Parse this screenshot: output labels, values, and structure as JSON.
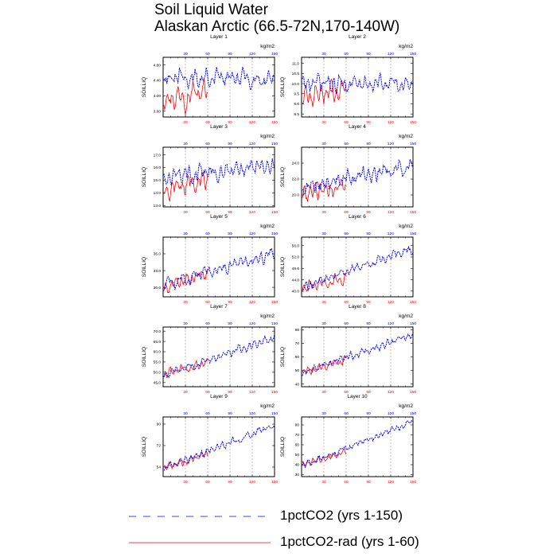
{
  "title": {
    "line1": "Soil Liquid Water",
    "line2": "Alaskan Arctic (66.5-72N,170-140W)"
  },
  "colors": {
    "series_long": "#0000ff",
    "series_short": "#ff0000",
    "axis": "#000000",
    "gridline": "#9a9a9a",
    "top_ticks": "#0000ff",
    "bottom_ticks": "#ff0000"
  },
  "legend": {
    "long_label": "1pctCO2 (yrs 1-150)",
    "short_label": "1pctCO2-rad (yrs 1-60)"
  },
  "chart_data": [
    {
      "type": "line",
      "title": "Layer 1",
      "ylabel": "SOILLIQ",
      "units": "kg/m2",
      "yticks": [
        3.6,
        4.0,
        4.4,
        4.8
      ],
      "ytick_labels": [
        "3.60",
        "4.00",
        "4.40",
        "4.80"
      ],
      "ylim": [
        3.45,
        5.0
      ],
      "xlim": [
        0,
        150
      ],
      "xticks": [
        30,
        60,
        90,
        120,
        150
      ],
      "grid": "vertical dashed",
      "series": [
        {
          "name": "1pctCO2 (yrs 1-150)",
          "start": 4.45,
          "trend": 0.0,
          "amp": 0.2,
          "noise": 0.11,
          "x_range": [
            1,
            150
          ]
        },
        {
          "name": "1pctCO2-rad (yrs 1-60)",
          "start": 3.95,
          "trend": 0.0028,
          "amp": 0.28,
          "noise": 0.13,
          "x_range": [
            1,
            60
          ]
        }
      ]
    },
    {
      "type": "line",
      "title": "Layer 2",
      "ylabel": "SOILLIQ",
      "units": "kg/m2",
      "yticks": [
        8.5,
        9.0,
        9.5,
        10.0,
        10.5,
        11.0
      ],
      "ytick_labels": [
        "8.5",
        "9.0",
        "9.5",
        "10.0",
        "10.5",
        "11.0"
      ],
      "ylim": [
        8.35,
        11.3
      ],
      "xlim": [
        0,
        150
      ],
      "xticks": [
        30,
        60,
        90,
        120,
        150
      ],
      "grid": "vertical dashed",
      "series": [
        {
          "name": "1pctCO2 (yrs 1-150)",
          "start": 10.0,
          "trend": 0.0,
          "amp": 0.35,
          "noise": 0.18,
          "x_range": [
            1,
            150
          ]
        },
        {
          "name": "1pctCO2-rad (yrs 1-60)",
          "start": 9.3,
          "trend": 0.008,
          "amp": 0.5,
          "noise": 0.2,
          "x_range": [
            1,
            60
          ]
        }
      ]
    },
    {
      "type": "line",
      "title": "Layer 3",
      "ylabel": "SOILLIQ",
      "units": "kg/m2",
      "yticks": [
        13.0,
        14.0,
        15.0,
        16.0,
        17.0
      ],
      "ytick_labels": [
        "13.0",
        "14.0",
        "15.0",
        "16.0",
        "17.0"
      ],
      "ylim": [
        12.9,
        17.6
      ],
      "xlim": [
        0,
        150
      ],
      "xticks": [
        30,
        60,
        90,
        120,
        150
      ],
      "grid": "vertical dashed",
      "series": [
        {
          "name": "1pctCO2 (yrs 1-150)",
          "start": 15.2,
          "trend": 0.007,
          "amp": 0.55,
          "noise": 0.3,
          "x_range": [
            1,
            150
          ]
        },
        {
          "name": "1pctCO2-rad (yrs 1-60)",
          "start": 14.2,
          "trend": 0.014,
          "amp": 0.7,
          "noise": 0.32,
          "x_range": [
            1,
            60
          ]
        }
      ]
    },
    {
      "type": "line",
      "title": "Layer 4",
      "ylabel": "SOILLIQ",
      "units": "kg/m2",
      "yticks": [
        20.0,
        22.0,
        24.0
      ],
      "ytick_labels": [
        "20.0",
        "22.0",
        "24.0"
      ],
      "ylim": [
        18.5,
        26.0
      ],
      "xlim": [
        0,
        150
      ],
      "xticks": [
        30,
        60,
        90,
        120,
        150
      ],
      "grid": "vertical dashed",
      "series": [
        {
          "name": "1pctCO2 (yrs 1-150)",
          "start": 20.8,
          "trend": 0.02,
          "amp": 0.9,
          "noise": 0.5,
          "x_range": [
            1,
            150
          ]
        },
        {
          "name": "1pctCO2-rad (yrs 1-60)",
          "start": 20.1,
          "trend": 0.02,
          "amp": 1.0,
          "noise": 0.5,
          "x_range": [
            1,
            60
          ]
        }
      ]
    },
    {
      "type": "line",
      "title": "Layer 5",
      "ylabel": "SOILLIQ",
      "units": "kg/m2",
      "yticks": [
        30.0,
        33.0,
        36.0
      ],
      "ytick_labels": [
        "30.0",
        "33.0",
        "36.0"
      ],
      "ylim": [
        28.3,
        39.0
      ],
      "xlim": [
        0,
        150
      ],
      "xticks": [
        30,
        60,
        90,
        120,
        150
      ],
      "grid": "vertical dashed",
      "series": [
        {
          "name": "1pctCO2 (yrs 1-150)",
          "start": 30.5,
          "trend": 0.038,
          "amp": 0.9,
          "noise": 0.5,
          "x_range": [
            1,
            150
          ]
        },
        {
          "name": "1pctCO2-rad (yrs 1-60)",
          "start": 30.0,
          "trend": 0.045,
          "amp": 1.1,
          "noise": 0.55,
          "x_range": [
            1,
            60
          ]
        }
      ]
    },
    {
      "type": "line",
      "title": "Layer 6",
      "ylabel": "SOILLIQ",
      "units": "kg/m2",
      "yticks": [
        40.0,
        44.0,
        48.0,
        52.0,
        56.0
      ],
      "ytick_labels": [
        "40.0",
        "44.0",
        "48.0",
        "52.0",
        "56.0"
      ],
      "ylim": [
        38.0,
        59.0
      ],
      "xlim": [
        0,
        150
      ],
      "xticks": [
        30,
        60,
        90,
        120,
        150
      ],
      "grid": "vertical dashed",
      "series": [
        {
          "name": "1pctCO2 (yrs 1-150)",
          "start": 41.5,
          "trend": 0.09,
          "amp": 1.5,
          "noise": 0.8,
          "x_range": [
            1,
            150
          ]
        },
        {
          "name": "1pctCO2-rad (yrs 1-60)",
          "start": 41.0,
          "trend": 0.06,
          "amp": 1.8,
          "noise": 0.8,
          "x_range": [
            1,
            60
          ]
        }
      ]
    },
    {
      "type": "line",
      "title": "Layer 7",
      "ylabel": "SOILLIQ",
      "units": "kg/m2",
      "yticks": [
        45.0,
        50.0,
        55.0,
        60.0,
        65.0,
        70.0
      ],
      "ytick_labels": [
        "45.0",
        "50.0",
        "55.0",
        "60.0",
        "65.0",
        "70.0"
      ],
      "ylim": [
        43.0,
        72.0
      ],
      "xlim": [
        0,
        150
      ],
      "xticks": [
        30,
        60,
        90,
        120,
        150
      ],
      "grid": "vertical dashed",
      "series": [
        {
          "name": "1pctCO2 (yrs 1-150)",
          "start": 48.5,
          "trend": 0.125,
          "amp": 1.8,
          "noise": 1.0,
          "x_range": [
            1,
            150
          ]
        },
        {
          "name": "1pctCO2-rad (yrs 1-60)",
          "start": 49.0,
          "trend": 0.1,
          "amp": 2.2,
          "noise": 1.0,
          "x_range": [
            1,
            60
          ]
        }
      ]
    },
    {
      "type": "line",
      "title": "Layer 8",
      "ylabel": "SOILLIQ",
      "units": "kg/m2",
      "yticks": [
        40,
        50,
        60,
        70,
        80
      ],
      "ytick_labels": [
        "40",
        "50",
        "60",
        "70",
        "80"
      ],
      "ylim": [
        38,
        82
      ],
      "xlim": [
        0,
        150
      ],
      "xticks": [
        30,
        60,
        90,
        120,
        150
      ],
      "grid": "vertical dashed",
      "series": [
        {
          "name": "1pctCO2 (yrs 1-150)",
          "start": 48.0,
          "trend": 0.19,
          "amp": 2.6,
          "noise": 1.5,
          "x_range": [
            1,
            150
          ]
        },
        {
          "name": "1pctCO2-rad (yrs 1-60)",
          "start": 49.0,
          "trend": 0.14,
          "amp": 3.0,
          "noise": 1.5,
          "x_range": [
            1,
            60
          ]
        }
      ]
    },
    {
      "type": "line",
      "title": "Layer 9",
      "ylabel": "SOILLIQ",
      "units": "kg/m2",
      "yticks": [
        54,
        72,
        90
      ],
      "ytick_labels": [
        "54",
        "72",
        "90"
      ],
      "ylim": [
        46,
        96
      ],
      "xlim": [
        0,
        150
      ],
      "xticks": [
        30,
        60,
        90,
        120,
        150
      ],
      "grid": "vertical dashed",
      "series": [
        {
          "name": "1pctCO2 (yrs 1-150)",
          "start": 53.0,
          "trend": 0.24,
          "amp": 2.6,
          "noise": 1.6,
          "x_range": [
            1,
            150
          ]
        },
        {
          "name": "1pctCO2-rad (yrs 1-60)",
          "start": 53.0,
          "trend": 0.2,
          "amp": 3.0,
          "noise": 1.6,
          "x_range": [
            1,
            60
          ]
        }
      ]
    },
    {
      "type": "line",
      "title": "Layer 10",
      "ylabel": "SOILLIQ",
      "units": "kg/m2",
      "yticks": [
        30,
        40,
        50,
        60,
        70,
        80
      ],
      "ytick_labels": [
        "30",
        "40",
        "50",
        "60",
        "70",
        "80"
      ],
      "ylim": [
        28,
        88
      ],
      "xlim": [
        0,
        150
      ],
      "xticks": [
        30,
        60,
        90,
        120,
        150
      ],
      "grid": "vertical dashed",
      "series": [
        {
          "name": "1pctCO2 (yrs 1-150)",
          "start": 39.0,
          "trend": 0.3,
          "amp": 2.8,
          "noise": 1.7,
          "x_range": [
            1,
            150
          ]
        },
        {
          "name": "1pctCO2-rad (yrs 1-60)",
          "start": 40.0,
          "trend": 0.22,
          "amp": 3.2,
          "noise": 1.7,
          "x_range": [
            1,
            60
          ]
        }
      ]
    }
  ]
}
